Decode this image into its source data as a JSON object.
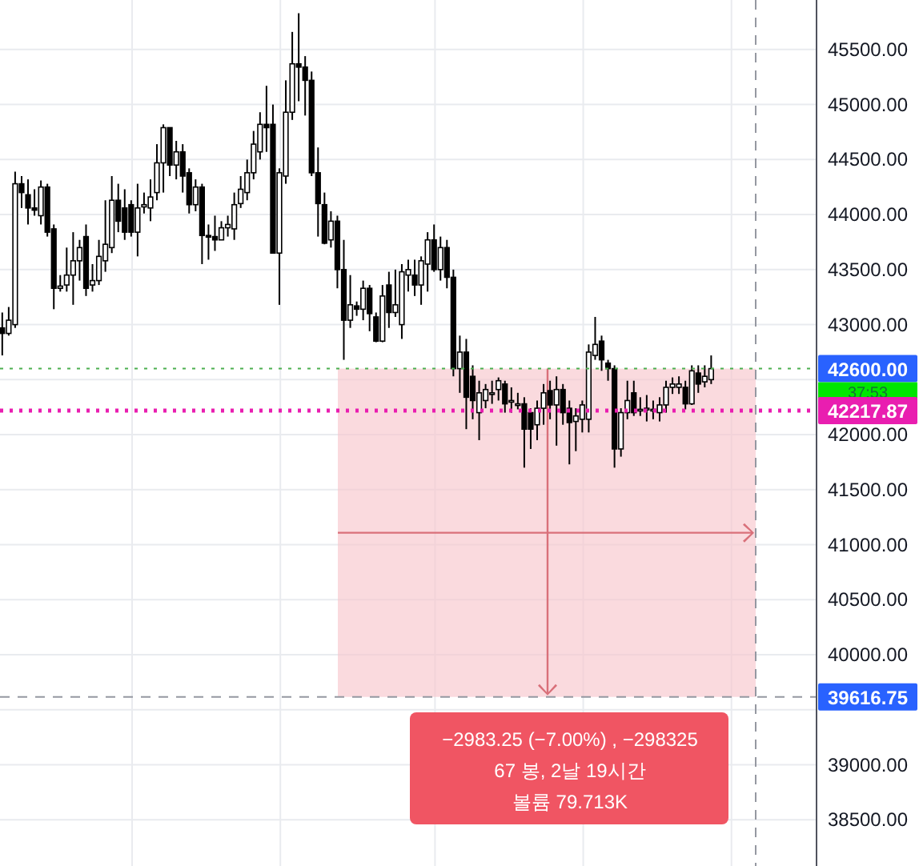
{
  "chart_data": {
    "type": "candlestick",
    "color": "#000000",
    "grid": true,
    "tick_labels": "y",
    "categories": [
      null,
      null,
      null,
      null,
      null,
      null,
      null,
      null,
      null,
      null,
      null,
      null,
      null,
      null,
      null,
      null,
      null,
      null,
      null,
      null,
      null,
      null,
      null,
      null,
      null,
      null,
      null,
      null,
      null,
      null,
      null,
      null,
      null,
      null,
      null,
      null,
      null,
      null,
      null,
      null,
      null,
      null,
      null,
      null,
      null,
      null,
      null,
      null,
      null,
      null,
      null,
      null,
      null,
      null,
      null,
      null,
      null,
      null,
      null,
      null,
      null,
      null,
      null,
      null,
      null,
      null,
      null,
      null,
      null,
      null,
      null,
      null,
      null,
      null,
      null,
      null,
      null,
      null,
      null,
      null,
      null,
      null,
      null,
      null,
      null,
      null,
      null,
      null,
      null,
      null,
      null,
      null,
      null,
      null,
      null,
      null,
      null,
      null,
      null,
      null,
      null,
      null,
      null,
      null,
      null,
      null,
      null,
      null,
      null,
      null,
      null,
      null,
      null,
      null,
      null,
      null,
      null,
      null,
      null,
      null,
      null,
      null,
      null,
      null,
      null,
      null,
      null
    ],
    "ohlc": [
      [
        42970,
        43110,
        42720,
        42920
      ],
      [
        42920,
        43160,
        42900,
        43040
      ],
      [
        43000,
        44390,
        42970,
        44280
      ],
      [
        44280,
        44350,
        44060,
        44200
      ],
      [
        44180,
        44320,
        43910,
        44060
      ],
      [
        44060,
        44230,
        43990,
        44040
      ],
      [
        43990,
        44310,
        43910,
        44250
      ],
      [
        44250,
        44280,
        43800,
        43840
      ],
      [
        43870,
        43910,
        43140,
        43330
      ],
      [
        43330,
        43450,
        43300,
        43350
      ],
      [
        43360,
        43700,
        43300,
        43450
      ],
      [
        43450,
        43840,
        43180,
        43580
      ],
      [
        43580,
        43770,
        43400,
        43700
      ],
      [
        43800,
        43910,
        43260,
        43330
      ],
      [
        43360,
        43550,
        43300,
        43400
      ],
      [
        43400,
        43770,
        43360,
        43620
      ],
      [
        43580,
        44130,
        43480,
        43730
      ],
      [
        43700,
        44350,
        43650,
        44130
      ],
      [
        44130,
        44280,
        43840,
        43940
      ],
      [
        44060,
        44230,
        43770,
        43840
      ],
      [
        44090,
        44130,
        43800,
        43840
      ],
      [
        43840,
        44280,
        43620,
        44060
      ],
      [
        44070,
        44200,
        44010,
        44090
      ],
      [
        44060,
        44320,
        43940,
        44160
      ],
      [
        44200,
        44640,
        44130,
        44470
      ],
      [
        44470,
        44820,
        44200,
        44790
      ],
      [
        44790,
        44790,
        44350,
        44450
      ],
      [
        44450,
        44670,
        44320,
        44570
      ],
      [
        44570,
        44640,
        44200,
        44350
      ],
      [
        44380,
        44420,
        44010,
        44090
      ],
      [
        44090,
        44320,
        44030,
        44250
      ],
      [
        44250,
        44280,
        43550,
        43810
      ],
      [
        43810,
        43910,
        43590,
        43800
      ],
      [
        43800,
        43990,
        43670,
        43770
      ],
      [
        43770,
        43940,
        43770,
        43880
      ],
      [
        43880,
        43990,
        43800,
        43910
      ],
      [
        43870,
        44200,
        43770,
        44090
      ],
      [
        44100,
        44350,
        44060,
        44230
      ],
      [
        44200,
        44500,
        44130,
        44380
      ],
      [
        44380,
        44760,
        44320,
        44640
      ],
      [
        44570,
        44930,
        44500,
        44820
      ],
      [
        44820,
        45170,
        44570,
        44790
      ],
      [
        44820,
        45000,
        43650,
        43650
      ],
      [
        43650,
        44420,
        43180,
        44380
      ],
      [
        44350,
        45220,
        44280,
        44930
      ],
      [
        44930,
        45660,
        44860,
        45370
      ],
      [
        45370,
        45830,
        45030,
        45340
      ],
      [
        45340,
        45440,
        44900,
        45220
      ],
      [
        45220,
        45300,
        44350,
        44380
      ],
      [
        44380,
        44610,
        43800,
        44100
      ],
      [
        44090,
        44200,
        43730,
        43740
      ],
      [
        43770,
        44030,
        43700,
        43940
      ],
      [
        43940,
        43990,
        43330,
        43500
      ],
      [
        43500,
        43770,
        42680,
        43040
      ],
      [
        43040,
        43450,
        42970,
        43180
      ],
      [
        43170,
        43210,
        43080,
        43140
      ],
      [
        43140,
        43400,
        43040,
        43330
      ],
      [
        43330,
        43360,
        42940,
        43100
      ],
      [
        43070,
        43110,
        42840,
        42850
      ],
      [
        42850,
        43360,
        42840,
        43260
      ],
      [
        43360,
        43480,
        42970,
        43110
      ],
      [
        43110,
        43500,
        43070,
        43180
      ],
      [
        43000,
        43550,
        42870,
        43480
      ],
      [
        43450,
        43590,
        43300,
        43500
      ],
      [
        43450,
        43590,
        43260,
        43360
      ],
      [
        43360,
        43620,
        43180,
        43580
      ],
      [
        43550,
        43840,
        43300,
        43770
      ],
      [
        43770,
        43910,
        43480,
        43500
      ],
      [
        43500,
        43800,
        43400,
        43700
      ],
      [
        43700,
        43770,
        43330,
        43430
      ],
      [
        43430,
        43500,
        42530,
        42600
      ],
      [
        42600,
        42900,
        42380,
        42750
      ],
      [
        42750,
        42870,
        42050,
        42340
      ],
      [
        42530,
        42630,
        42140,
        42310
      ],
      [
        42200,
        42490,
        41950,
        42380
      ],
      [
        42310,
        42460,
        42240,
        42410
      ],
      [
        42380,
        42490,
        42280,
        42380
      ],
      [
        42410,
        42520,
        42310,
        42490
      ],
      [
        42460,
        42490,
        42200,
        42280
      ],
      [
        42310,
        42430,
        42200,
        42310
      ],
      [
        42280,
        42380,
        42230,
        42280
      ],
      [
        42280,
        42340,
        41700,
        42050
      ],
      [
        42200,
        42240,
        41870,
        42050
      ],
      [
        42090,
        42310,
        41950,
        42240
      ],
      [
        42240,
        42460,
        42090,
        42380
      ],
      [
        42400,
        42490,
        42140,
        42270
      ],
      [
        42270,
        42530,
        41900,
        42410
      ],
      [
        42410,
        42460,
        42090,
        42200
      ],
      [
        42240,
        42310,
        41730,
        42110
      ],
      [
        42120,
        42240,
        41850,
        42170
      ],
      [
        42140,
        42310,
        42020,
        42270
      ],
      [
        42140,
        42820,
        42020,
        42750
      ],
      [
        42720,
        43070,
        42680,
        42820
      ],
      [
        42850,
        42900,
        42580,
        42680
      ],
      [
        42650,
        42680,
        42490,
        42600
      ],
      [
        42600,
        42630,
        41700,
        41870
      ],
      [
        41870,
        42240,
        41800,
        42200
      ],
      [
        42200,
        42490,
        42140,
        42310
      ],
      [
        42380,
        42490,
        42170,
        42200
      ],
      [
        42230,
        42340,
        42170,
        42230
      ],
      [
        42240,
        42360,
        42120,
        42240
      ],
      [
        42230,
        42310,
        42140,
        42230
      ],
      [
        42200,
        42340,
        42120,
        42270
      ],
      [
        42270,
        42490,
        42200,
        42430
      ],
      [
        42430,
        42520,
        42370,
        42460
      ],
      [
        42430,
        42530,
        42370,
        42460
      ],
      [
        42430,
        42490,
        42230,
        42280
      ],
      [
        42280,
        42630,
        42270,
        42580
      ],
      [
        42560,
        42630,
        42380,
        42460
      ],
      [
        42480,
        42630,
        42430,
        42530
      ],
      [
        42500,
        42720,
        42460,
        42600
      ],
      null,
      null,
      null,
      null,
      null,
      null,
      null,
      null,
      null,
      null,
      null,
      null,
      null,
      null,
      null,
      null
    ],
    "ylim": [
      38080,
      45950
    ],
    "yticks": [
      {
        "value": 38500,
        "label": "38500.00"
      },
      {
        "value": 39000,
        "label": "39000.00"
      },
      {
        "value": 39500,
        "label": null
      },
      {
        "value": 40000,
        "label": "40000.00"
      },
      {
        "value": 40500,
        "label": "40500.00"
      },
      {
        "value": 41000,
        "label": "41000.00"
      },
      {
        "value": 41500,
        "label": "41500.00"
      },
      {
        "value": 42000,
        "label": "42000.00"
      },
      {
        "value": 42500,
        "label": null
      },
      {
        "value": 43000,
        "label": "43000.00"
      },
      {
        "value": 43500,
        "label": "43500.00"
      },
      {
        "value": 44000,
        "label": "44000.00"
      },
      {
        "value": 44500,
        "label": "44500.00"
      },
      {
        "value": 45000,
        "label": "45000.00"
      },
      {
        "value": 45500,
        "label": "45500.00"
      }
    ],
    "ref_lines": [
      {
        "axis": "y",
        "value": 42600,
        "label": "42600.00",
        "color": "#4caf50",
        "line_style": "dotted"
      },
      {
        "axis": "y",
        "value": 42217.87,
        "label": "42217.87",
        "color": "#e91eb0",
        "line_style": "dotted"
      },
      {
        "axis": "y",
        "value": 39616.75,
        "label": "39616.75",
        "color": "#9598a1",
        "line_style": "dashed"
      }
    ],
    "annotations": [
      "37:53",
      "−2983.25 (−7.00%) , −298325",
      "67 봉, 2날 19시간",
      "볼륨 79.713K"
    ]
  }
}
